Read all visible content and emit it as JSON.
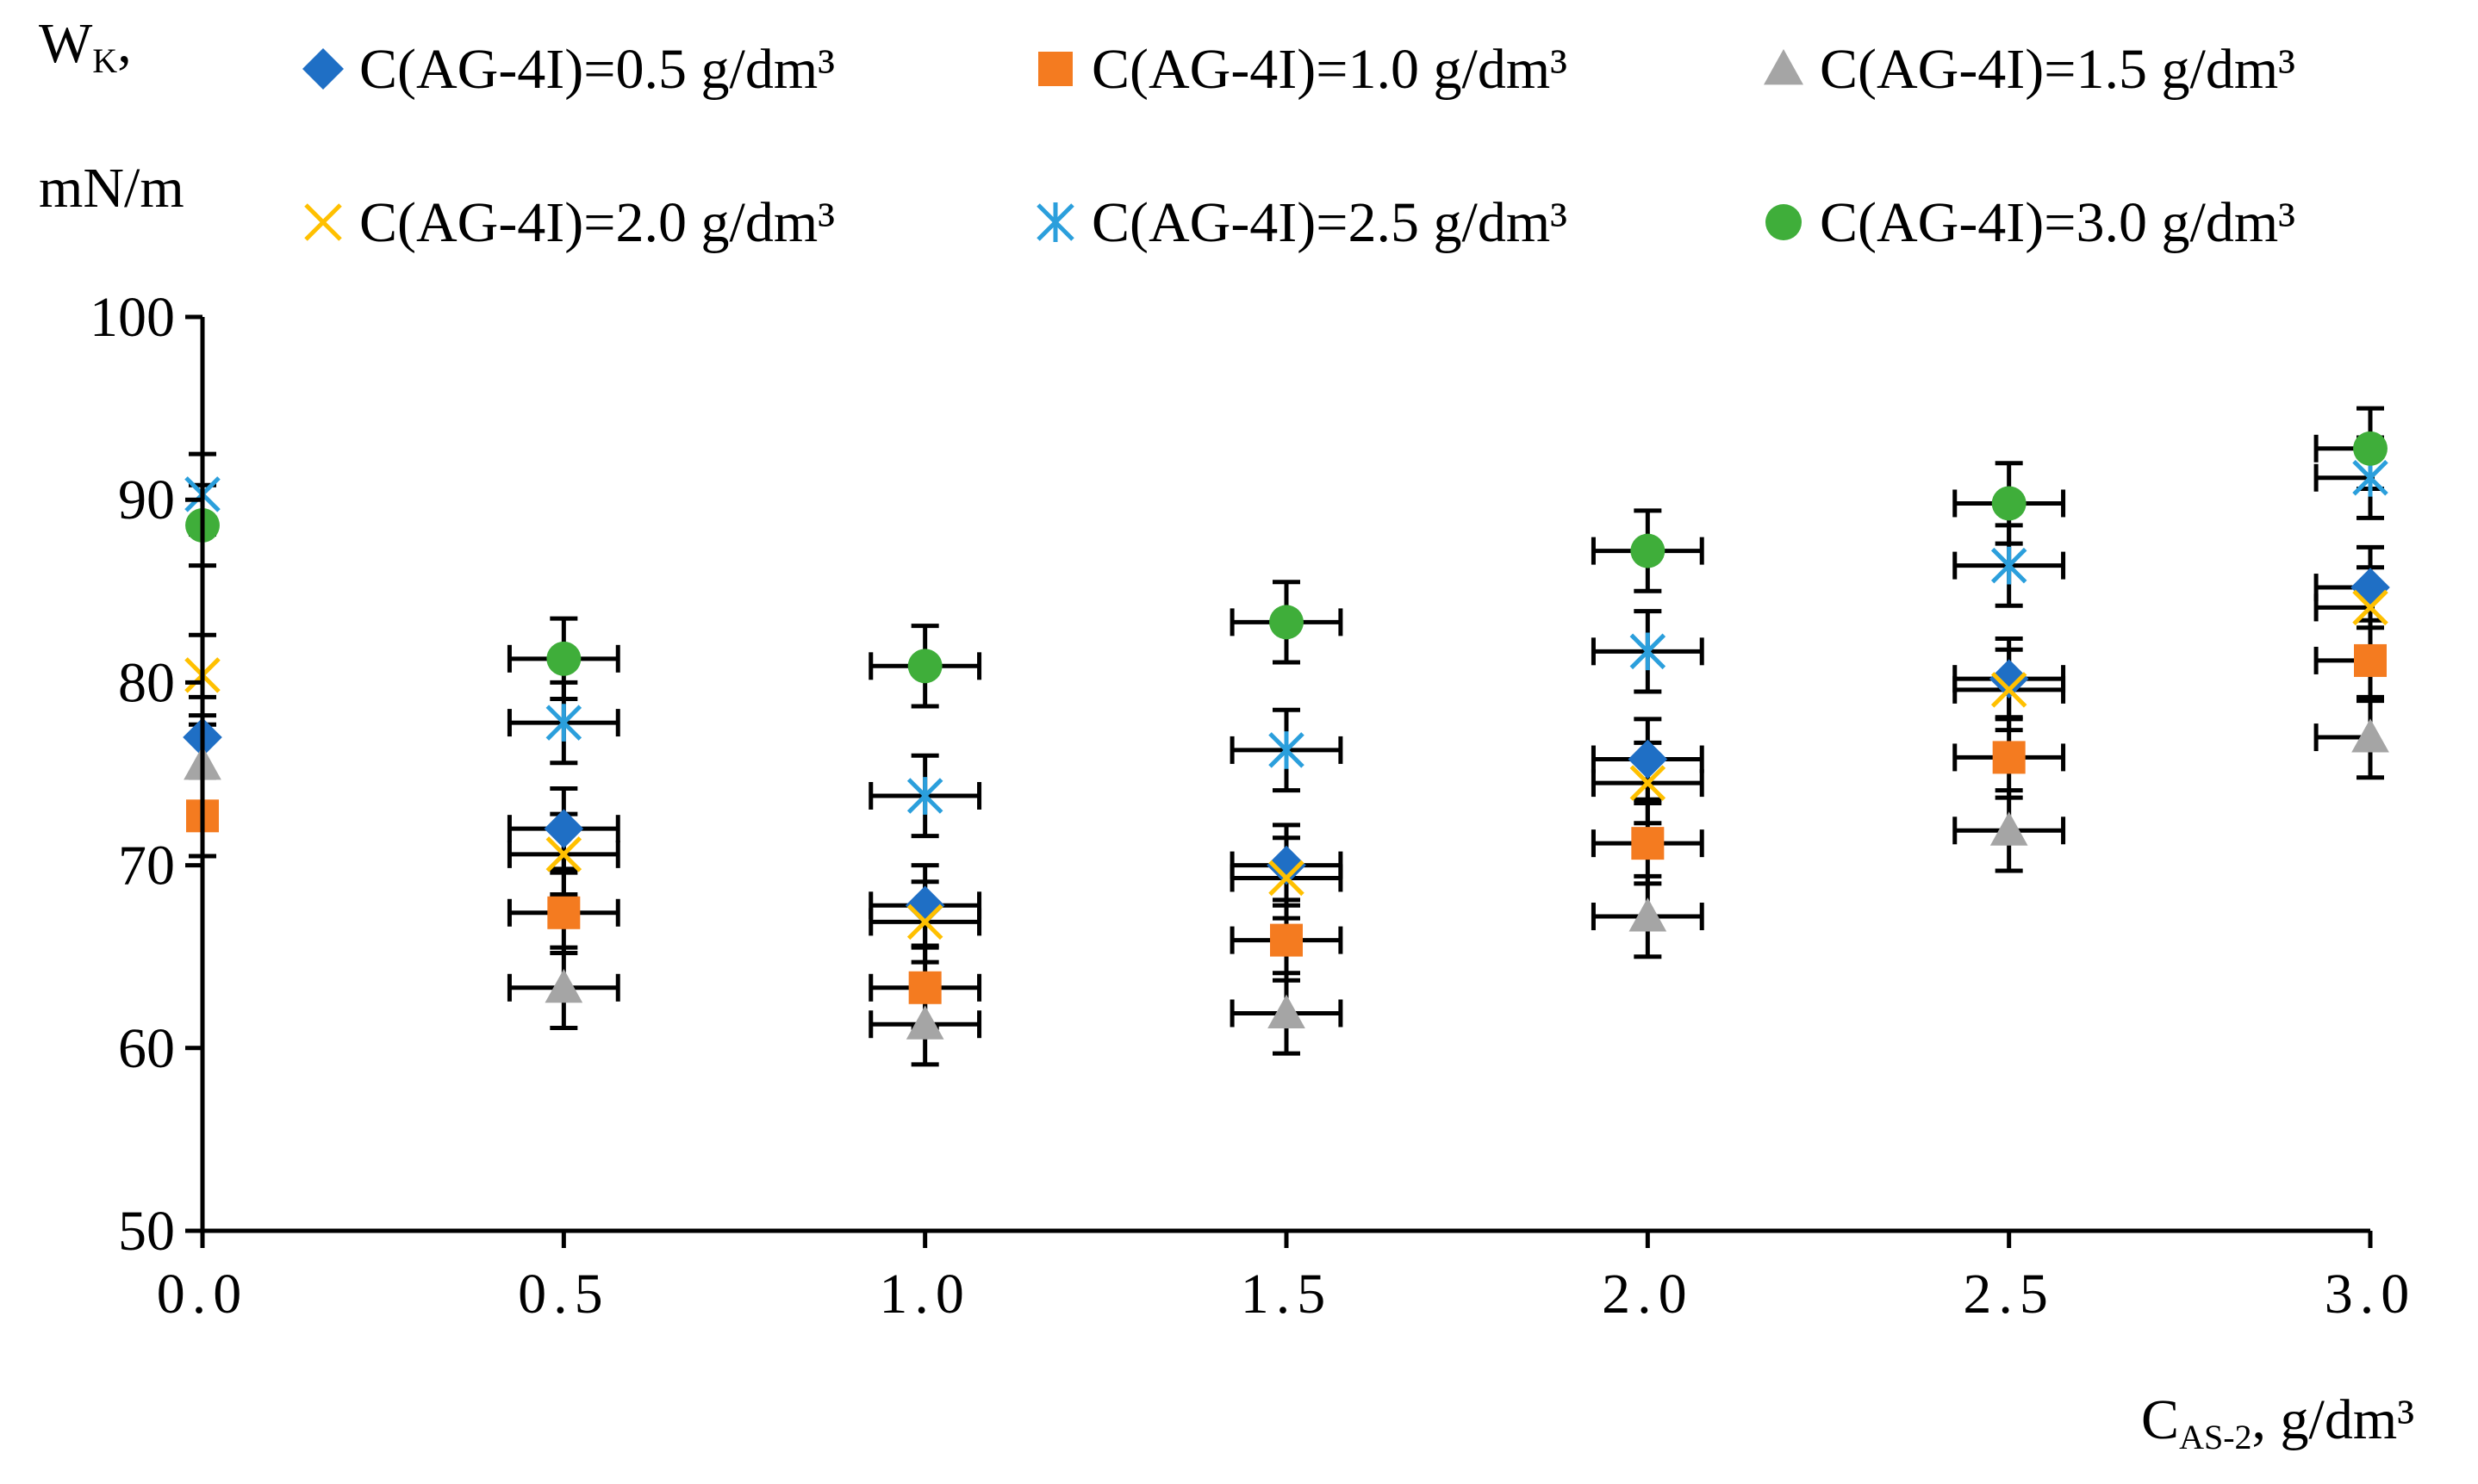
{
  "chart_data": {
    "type": "scatter",
    "title": "",
    "ylabel": {
      "main": "W",
      "sub": "K",
      "after": ",",
      "unit": "mN/m"
    },
    "xlabel": {
      "main": "C",
      "sub": "AS-2",
      "after": ", g/dm³"
    },
    "xlim": [
      0,
      3
    ],
    "ylim": [
      50,
      100
    ],
    "x": [
      0.0,
      0.5,
      1.0,
      1.5,
      2.0,
      2.5,
      3.0
    ],
    "x_tick_labels": [
      "0.0",
      "0.5",
      "1.0",
      "1.5",
      "2.0",
      "2.5",
      "3.0"
    ],
    "y_ticks": [
      50,
      60,
      70,
      80,
      90,
      100
    ],
    "y_tick_labels": [
      "50",
      "60",
      "70",
      "80",
      "90",
      "100"
    ],
    "error_y": 2.2,
    "error_x": 0.075,
    "legend_position": "top",
    "series": [
      {
        "name": "C(AG-4I)=0.5 g/dm³",
        "marker": "diamond",
        "color": "#1f6fc5",
        "values": [
          77.0,
          72.0,
          67.8,
          70.0,
          75.8,
          80.2,
          85.2
        ]
      },
      {
        "name": "C(AG-4I)=1.0 g/dm³",
        "marker": "square",
        "color": "#f47b20",
        "values": [
          72.7,
          67.4,
          63.3,
          65.9,
          71.2,
          75.9,
          81.2
        ]
      },
      {
        "name": "C(AG-4I)=1.5 g/dm³",
        "marker": "triangle",
        "color": "#a5a5a5",
        "values": [
          75.5,
          63.3,
          61.3,
          61.9,
          67.2,
          71.9,
          77.0
        ]
      },
      {
        "name": "C(AG-4I)=2.0 g/dm³",
        "marker": "x",
        "color": "#ffc000",
        "values": [
          80.4,
          70.6,
          66.9,
          69.3,
          74.5,
          79.6,
          84.1
        ]
      },
      {
        "name": "C(AG-4I)=2.5 g/dm³",
        "marker": "star",
        "color": "#2b9fdc",
        "values": [
          90.3,
          77.8,
          73.8,
          76.3,
          81.7,
          86.4,
          91.2
        ]
      },
      {
        "name": "C(AG-4I)=3.0 g/dm³",
        "marker": "circle",
        "color": "#3fae3a",
        "values": [
          88.6,
          81.3,
          80.9,
          83.3,
          87.2,
          89.8,
          92.8
        ]
      }
    ]
  }
}
